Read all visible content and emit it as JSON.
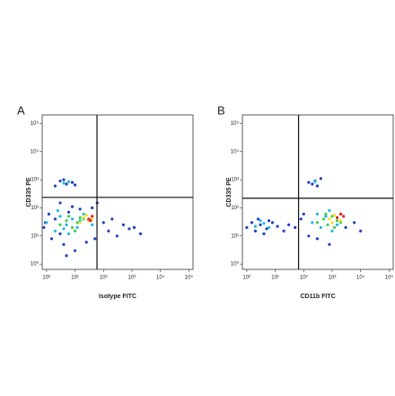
{
  "chart_data": [
    {
      "type": "scatter",
      "panel_label": "A",
      "xlabel": "Isotype FITC",
      "ylabel": "CD335 PE",
      "log_x": true,
      "log_y": true,
      "xlim": [
        0.7,
        140000
      ],
      "ylim": [
        0.65,
        200000
      ],
      "xticks": [
        {
          "value": 1,
          "label": "10⁰"
        },
        {
          "value": 10,
          "label": "10¹"
        },
        {
          "value": 100,
          "label": "10²"
        },
        {
          "value": 1000,
          "label": "10³"
        },
        {
          "value": 10000,
          "label": "10⁴"
        },
        {
          "value": 100000,
          "label": "10⁵"
        }
      ],
      "yticks": [
        {
          "value": 1,
          "label": "10⁰"
        },
        {
          "value": 10,
          "label": "10¹"
        },
        {
          "value": 100,
          "label": "10²"
        },
        {
          "value": 1000,
          "label": "10³"
        },
        {
          "value": 10000,
          "label": "10⁴"
        },
        {
          "value": 100000,
          "label": "10⁵"
        }
      ],
      "gates": {
        "x": 59,
        "y": 235
      },
      "series": [
        {
          "color": "#1f3fbf",
          "x": [
            0.8,
            1.5,
            2,
            3,
            4,
            6,
            10,
            15,
            25,
            40,
            60,
            100,
            150,
            200,
            300,
            500,
            800,
            1200,
            2000,
            5,
            3,
            1.2,
            0.9,
            8,
            50,
            2,
            3,
            5,
            8,
            10,
            4
          ],
          "y": [
            20,
            8,
            40,
            12,
            5,
            70,
            3,
            90,
            6,
            100,
            150,
            30,
            15,
            40,
            10,
            25,
            18,
            20,
            12,
            2,
            150,
            60,
            30,
            110,
            8,
            600,
            900,
            700,
            800,
            650,
            1000
          ]
        },
        {
          "color": "#22b8e0",
          "x": [
            1,
            2,
            3,
            5,
            8,
            12,
            20,
            2.5,
            6,
            15,
            40,
            4,
            4,
            6
          ],
          "y": [
            30,
            15,
            50,
            25,
            40,
            20,
            60,
            80,
            12,
            35,
            25,
            18,
            750,
            850
          ]
        },
        {
          "color": "#3cd050",
          "x": [
            3,
            5,
            8,
            12,
            20,
            6,
            10,
            15
          ],
          "y": [
            25,
            35,
            20,
            30,
            40,
            50,
            15,
            45
          ]
        },
        {
          "color": "#f0e020",
          "x": [
            15,
            20,
            30,
            25,
            40
          ],
          "y": [
            30,
            45,
            35,
            55,
            40
          ]
        },
        {
          "color": "#e02020",
          "x": [
            30,
            40,
            35
          ],
          "y": [
            40,
            50,
            35
          ]
        }
      ]
    },
    {
      "type": "scatter",
      "panel_label": "B",
      "xlabel": "CD11b FITC",
      "ylabel": "CD335 PE",
      "log_x": true,
      "log_y": true,
      "xlim": [
        0.7,
        140000
      ],
      "ylim": [
        0.65,
        200000
      ],
      "xticks": [
        {
          "value": 1,
          "label": "10⁰"
        },
        {
          "value": 10,
          "label": "10¹"
        },
        {
          "value": 100,
          "label": "10²"
        },
        {
          "value": 1000,
          "label": "10³"
        },
        {
          "value": 10000,
          "label": "10⁴"
        },
        {
          "value": 100000,
          "label": "10⁵"
        }
      ],
      "yticks": [
        {
          "value": 1,
          "label": "10⁰"
        },
        {
          "value": 10,
          "label": "10¹"
        },
        {
          "value": 100,
          "label": "10²"
        },
        {
          "value": 1000,
          "label": "10³"
        },
        {
          "value": 10000,
          "label": "10⁴"
        },
        {
          "value": 100000,
          "label": "10⁵"
        }
      ],
      "gates": {
        "x": 66,
        "y": 220
      },
      "series": [
        {
          "color": "#1f3fbf",
          "x": [
            1,
            1.5,
            2,
            3,
            5,
            8,
            12,
            20,
            2.5,
            4,
            6,
            50,
            80,
            150,
            300,
            800,
            3000,
            6000,
            10000,
            200,
            250,
            300,
            150,
            400,
            100,
            30
          ],
          "y": [
            20,
            30,
            15,
            25,
            18,
            30,
            22,
            15,
            40,
            12,
            35,
            20,
            40,
            10,
            8,
            5,
            20,
            30,
            15,
            700,
            900,
            600,
            800,
            1100,
            60,
            25
          ]
        },
        {
          "color": "#22b8e0",
          "x": [
            2,
            4,
            6,
            3,
            200,
            400,
            600,
            1000,
            300,
            800,
            1500,
            250
          ],
          "y": [
            22,
            28,
            20,
            35,
            30,
            20,
            50,
            15,
            60,
            80,
            25,
            850
          ]
        },
        {
          "color": "#3cd050",
          "x": [
            300,
            500,
            700,
            1000,
            1500,
            2000,
            600,
            1200
          ],
          "y": [
            30,
            40,
            25,
            50,
            35,
            30,
            60,
            20
          ]
        },
        {
          "color": "#f0e020",
          "x": [
            800,
            1200,
            1500,
            2000,
            1000
          ],
          "y": [
            40,
            55,
            45,
            35,
            30
          ]
        },
        {
          "color": "#e02020",
          "x": [
            1500,
            2000,
            2500
          ],
          "y": [
            45,
            60,
            50
          ]
        }
      ]
    }
  ]
}
